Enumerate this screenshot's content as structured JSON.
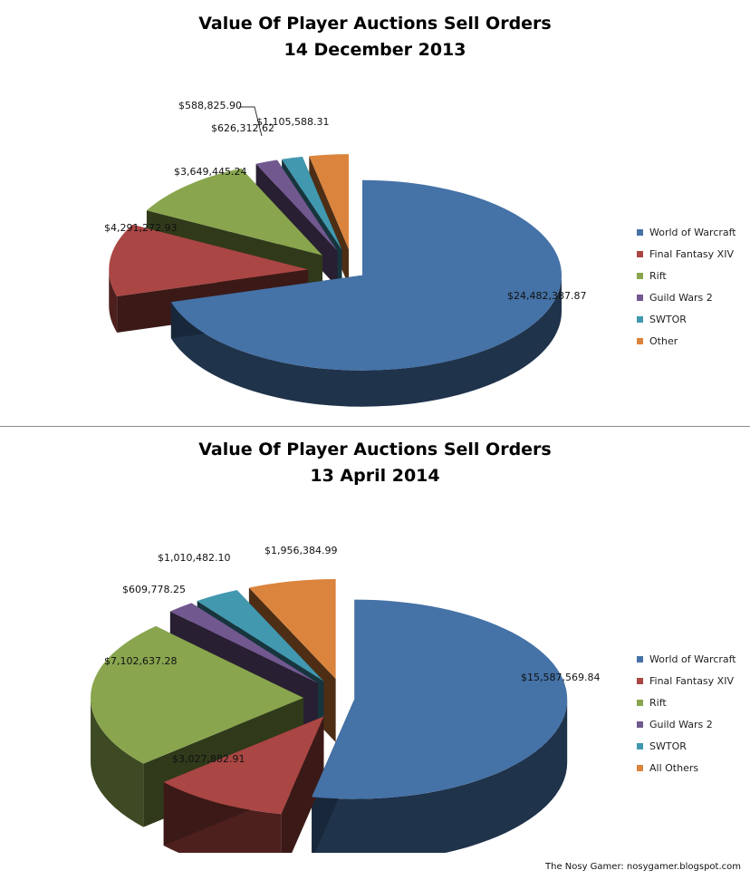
{
  "chart_data": [
    {
      "type": "pie",
      "title": "Value Of Player Auctions Sell Orders",
      "subtitle": "14 December 2013",
      "categories": [
        "World of Warcraft",
        "Final Fantasy XIV",
        "Rift",
        "Guild Wars 2",
        "SWTOR",
        "Other"
      ],
      "values": [
        24482387.87,
        4291272.93,
        3649445.24,
        626312.62,
        588825.9,
        1105588.31
      ],
      "data_labels": [
        "$24,482,387.87",
        "$4,291,272.93",
        "$3,649,445.24",
        "$626,312.62",
        "$588,825.90",
        "$1,105,588.31"
      ],
      "colors": [
        "#4572a7",
        "#aa4643",
        "#89a54e",
        "#71588f",
        "#4198af",
        "#db843d"
      ],
      "style": "3d-exploded",
      "legend": "right"
    },
    {
      "type": "pie",
      "title": "Value Of Player Auctions Sell Orders",
      "subtitle": "13 April 2014",
      "categories": [
        "World of Warcraft",
        "Final Fantasy XIV",
        "Rift",
        "Guild Wars 2",
        "SWTOR",
        "All Others"
      ],
      "values": [
        15587569.84,
        3027882.91,
        7102637.28,
        609778.25,
        1010482.1,
        1956384.99
      ],
      "data_labels": [
        "$15,587,569.84",
        "$3,027,882.91",
        "$7,102,637.28",
        "$609,778.25",
        "$1,010,482.10",
        "$1,956,384.99"
      ],
      "colors": [
        "#4572a7",
        "#aa4643",
        "#89a54e",
        "#71588f",
        "#4198af",
        "#db843d"
      ],
      "style": "3d-exploded",
      "legend": "right"
    }
  ],
  "credit": "The Nosy Gamer: nosygamer.blogspot.com"
}
